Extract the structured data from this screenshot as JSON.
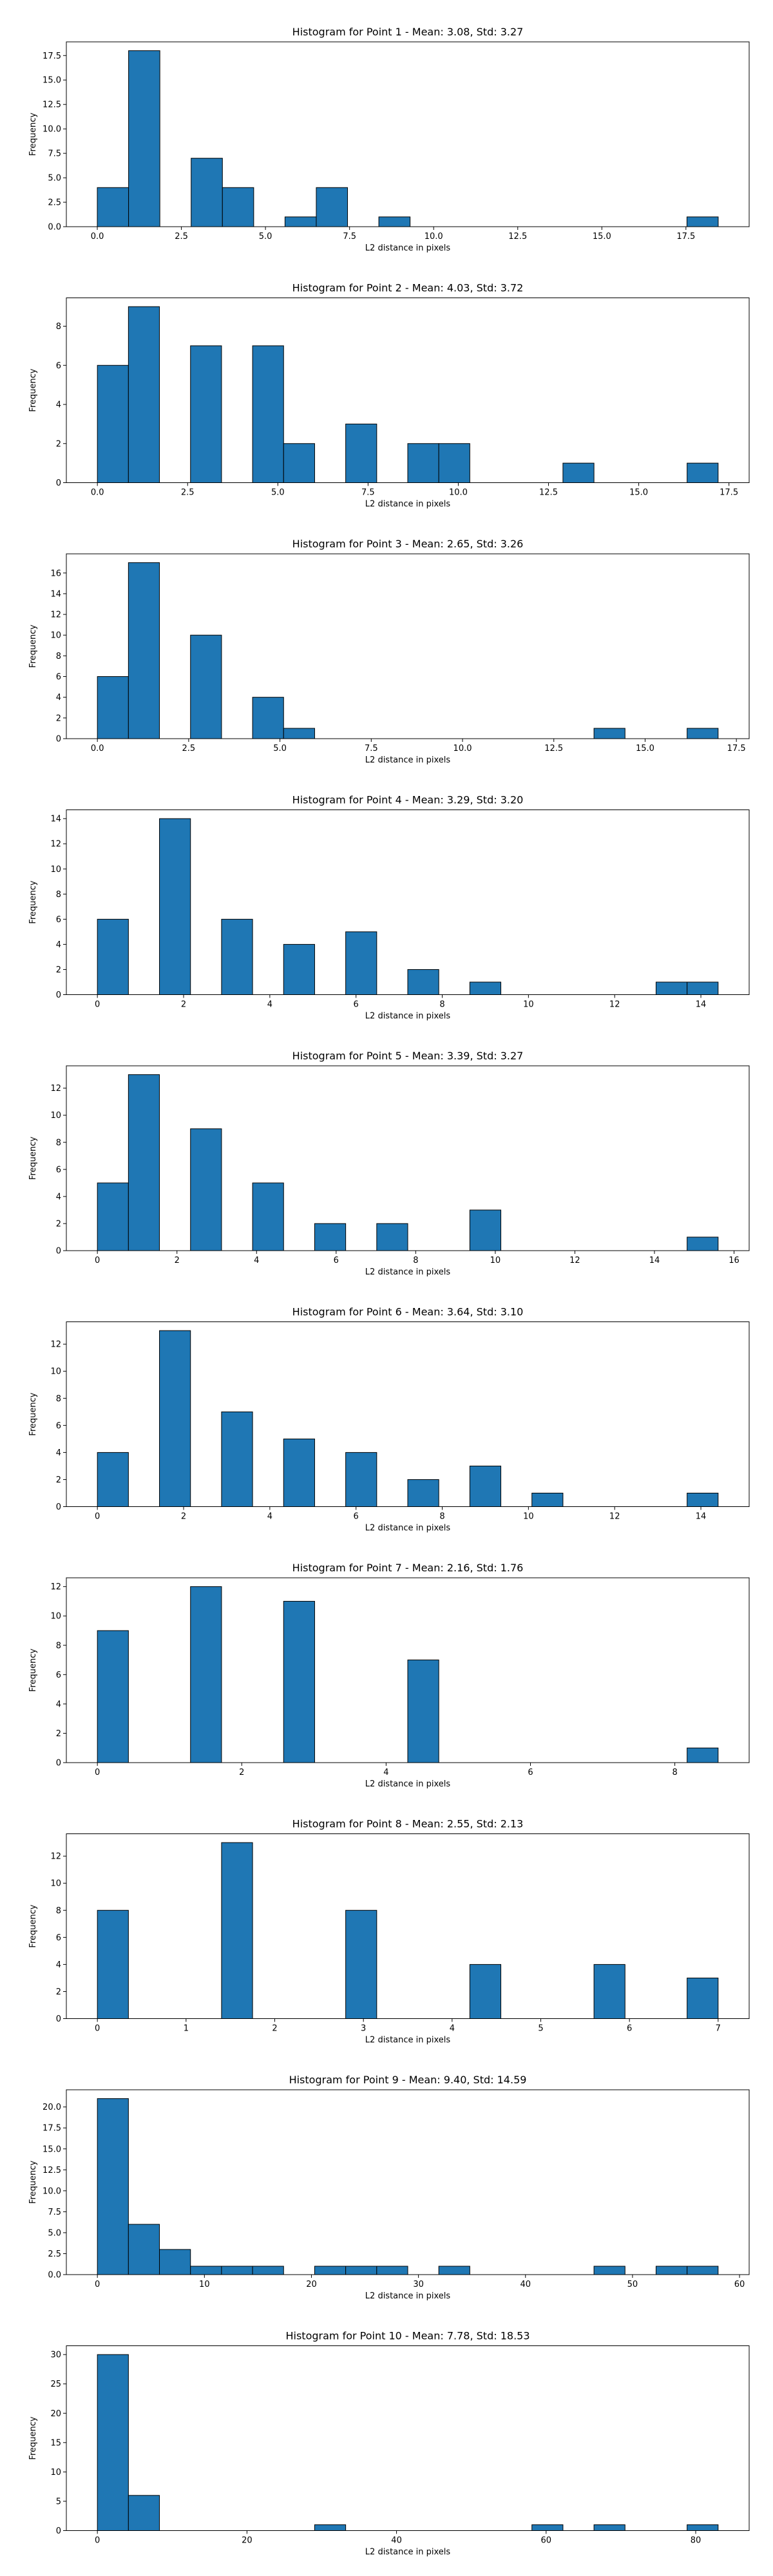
{
  "figure": {
    "background": "#ffffff",
    "bar_color": "#1f77b4",
    "edge_color": "#000000"
  },
  "chart_data": [
    {
      "type": "bar",
      "title": "Histogram for Point 1 - Mean: 3.08, Std: 3.27",
      "xlabel": "L2 distance in pixels",
      "ylabel": "Frequency",
      "xlim": [
        -0.92,
        19.38
      ],
      "ylim": [
        0,
        18.9
      ],
      "xticks": [
        0,
        2.5,
        5,
        7.5,
        10,
        12.5,
        15,
        17.5
      ],
      "xtick_labels": [
        "0.0",
        "2.5",
        "5.0",
        "7.5",
        "10.0",
        "12.5",
        "15.0",
        "17.5"
      ],
      "yticks": [
        0,
        2.5,
        5,
        7.5,
        10,
        12.5,
        15,
        17.5
      ],
      "ytick_labels": [
        "0.0",
        "2.5",
        "5.0",
        "7.5",
        "10.0",
        "12.5",
        "15.0",
        "17.5"
      ],
      "bins": [
        {
          "x0": 0.0,
          "x1": 0.93,
          "count": 4
        },
        {
          "x0": 0.93,
          "x1": 1.86,
          "count": 18
        },
        {
          "x0": 2.79,
          "x1": 3.72,
          "count": 7
        },
        {
          "x0": 3.72,
          "x1": 4.65,
          "count": 4
        },
        {
          "x0": 5.58,
          "x1": 6.51,
          "count": 1
        },
        {
          "x0": 6.51,
          "x1": 7.44,
          "count": 4
        },
        {
          "x0": 8.37,
          "x1": 9.3,
          "count": 1
        },
        {
          "x0": 17.53,
          "x1": 18.46,
          "count": 1
        }
      ]
    },
    {
      "type": "bar",
      "title": "Histogram for Point 2 - Mean: 4.03, Std: 3.72",
      "xlabel": "L2 distance in pixels",
      "ylabel": "Frequency",
      "xlim": [
        -0.86,
        18.06
      ],
      "ylim": [
        0,
        9.45
      ],
      "xticks": [
        0,
        2.5,
        5,
        7.5,
        10,
        12.5,
        15,
        17.5
      ],
      "xtick_labels": [
        "0.0",
        "2.5",
        "5.0",
        "7.5",
        "10.0",
        "12.5",
        "15.0",
        "17.5"
      ],
      "yticks": [
        0,
        2,
        4,
        6,
        8
      ],
      "ytick_labels": [
        "0",
        "2",
        "4",
        "6",
        "8"
      ],
      "bins": [
        {
          "x0": 0.0,
          "x1": 0.86,
          "count": 6
        },
        {
          "x0": 0.86,
          "x1": 1.72,
          "count": 9
        },
        {
          "x0": 2.58,
          "x1": 3.44,
          "count": 7
        },
        {
          "x0": 4.3,
          "x1": 5.16,
          "count": 7
        },
        {
          "x0": 5.16,
          "x1": 6.02,
          "count": 2
        },
        {
          "x0": 6.88,
          "x1": 7.74,
          "count": 3
        },
        {
          "x0": 8.6,
          "x1": 9.46,
          "count": 2
        },
        {
          "x0": 9.46,
          "x1": 10.32,
          "count": 2
        },
        {
          "x0": 12.9,
          "x1": 13.76,
          "count": 1
        },
        {
          "x0": 16.34,
          "x1": 17.2,
          "count": 1
        }
      ]
    },
    {
      "type": "bar",
      "title": "Histogram for Point 3 - Mean: 2.65, Std: 3.26",
      "xlabel": "L2 distance in pixels",
      "ylabel": "Frequency",
      "xlim": [
        -0.85,
        17.85
      ],
      "ylim": [
        0,
        17.85
      ],
      "xticks": [
        0,
        2.5,
        5,
        7.5,
        10,
        12.5,
        15,
        17.5
      ],
      "xtick_labels": [
        "0.0",
        "2.5",
        "5.0",
        "7.5",
        "10.0",
        "12.5",
        "15.0",
        "17.5"
      ],
      "yticks": [
        0,
        2,
        4,
        6,
        8,
        10,
        12,
        14,
        16
      ],
      "ytick_labels": [
        "0",
        "2",
        "4",
        "6",
        "8",
        "10",
        "12",
        "14",
        "16"
      ],
      "bins": [
        {
          "x0": 0.0,
          "x1": 0.85,
          "count": 6
        },
        {
          "x0": 0.85,
          "x1": 1.7,
          "count": 17
        },
        {
          "x0": 2.55,
          "x1": 3.4,
          "count": 10
        },
        {
          "x0": 4.25,
          "x1": 5.1,
          "count": 4
        },
        {
          "x0": 5.1,
          "x1": 5.95,
          "count": 1
        },
        {
          "x0": 13.6,
          "x1": 14.45,
          "count": 1
        },
        {
          "x0": 16.15,
          "x1": 17.0,
          "count": 1
        }
      ]
    },
    {
      "type": "bar",
      "title": "Histogram for Point 4 - Mean: 3.29, Std: 3.20",
      "xlabel": "L2 distance in pixels",
      "ylabel": "Frequency",
      "xlim": [
        -0.72,
        15.12
      ],
      "ylim": [
        0,
        14.7
      ],
      "xticks": [
        0,
        2,
        4,
        6,
        8,
        10,
        12,
        14
      ],
      "xtick_labels": [
        "0",
        "2",
        "4",
        "6",
        "8",
        "10",
        "12",
        "14"
      ],
      "yticks": [
        0,
        2,
        4,
        6,
        8,
        10,
        12,
        14
      ],
      "ytick_labels": [
        "0",
        "2",
        "4",
        "6",
        "8",
        "10",
        "12",
        "14"
      ],
      "bins": [
        {
          "x0": 0.0,
          "x1": 0.72,
          "count": 6
        },
        {
          "x0": 1.44,
          "x1": 2.16,
          "count": 14
        },
        {
          "x0": 2.88,
          "x1": 3.6,
          "count": 6
        },
        {
          "x0": 4.32,
          "x1": 5.04,
          "count": 4
        },
        {
          "x0": 5.76,
          "x1": 6.48,
          "count": 5
        },
        {
          "x0": 7.2,
          "x1": 7.92,
          "count": 2
        },
        {
          "x0": 8.64,
          "x1": 9.36,
          "count": 1
        },
        {
          "x0": 12.96,
          "x1": 13.68,
          "count": 1
        },
        {
          "x0": 13.68,
          "x1": 14.4,
          "count": 1
        }
      ]
    },
    {
      "type": "bar",
      "title": "Histogram for Point 5 - Mean: 3.39, Std: 3.27",
      "xlabel": "L2 distance in pixels",
      "ylabel": "Frequency",
      "xlim": [
        -0.78,
        16.38
      ],
      "ylim": [
        0,
        13.65
      ],
      "xticks": [
        0,
        2,
        4,
        6,
        8,
        10,
        12,
        14,
        16
      ],
      "xtick_labels": [
        "0",
        "2",
        "4",
        "6",
        "8",
        "10",
        "12",
        "14",
        "16"
      ],
      "yticks": [
        0,
        2,
        4,
        6,
        8,
        10,
        12
      ],
      "ytick_labels": [
        "0",
        "2",
        "4",
        "6",
        "8",
        "10",
        "12"
      ],
      "bins": [
        {
          "x0": 0.0,
          "x1": 0.78,
          "count": 5
        },
        {
          "x0": 0.78,
          "x1": 1.56,
          "count": 13
        },
        {
          "x0": 2.34,
          "x1": 3.12,
          "count": 9
        },
        {
          "x0": 3.9,
          "x1": 4.68,
          "count": 5
        },
        {
          "x0": 5.46,
          "x1": 6.24,
          "count": 2
        },
        {
          "x0": 7.02,
          "x1": 7.8,
          "count": 2
        },
        {
          "x0": 9.36,
          "x1": 10.14,
          "count": 3
        },
        {
          "x0": 14.82,
          "x1": 15.6,
          "count": 1
        }
      ]
    },
    {
      "type": "bar",
      "title": "Histogram for Point 6 - Mean: 3.64, Std: 3.10",
      "xlabel": "L2 distance in pixels",
      "ylabel": "Frequency",
      "xlim": [
        -0.72,
        15.12
      ],
      "ylim": [
        0,
        13.65
      ],
      "xticks": [
        0,
        2,
        4,
        6,
        8,
        10,
        12,
        14
      ],
      "xtick_labels": [
        "0",
        "2",
        "4",
        "6",
        "8",
        "10",
        "12",
        "14"
      ],
      "yticks": [
        0,
        2,
        4,
        6,
        8,
        10,
        12
      ],
      "ytick_labels": [
        "0",
        "2",
        "4",
        "6",
        "8",
        "10",
        "12"
      ],
      "bins": [
        {
          "x0": 0.0,
          "x1": 0.72,
          "count": 4
        },
        {
          "x0": 1.44,
          "x1": 2.16,
          "count": 13
        },
        {
          "x0": 2.88,
          "x1": 3.6,
          "count": 7
        },
        {
          "x0": 4.32,
          "x1": 5.04,
          "count": 5
        },
        {
          "x0": 5.76,
          "x1": 6.48,
          "count": 4
        },
        {
          "x0": 7.2,
          "x1": 7.92,
          "count": 2
        },
        {
          "x0": 8.64,
          "x1": 9.36,
          "count": 3
        },
        {
          "x0": 10.08,
          "x1": 10.8,
          "count": 1
        },
        {
          "x0": 13.68,
          "x1": 14.4,
          "count": 1
        }
      ]
    },
    {
      "type": "bar",
      "title": "Histogram for Point 7 - Mean: 2.16, Std: 1.76",
      "xlabel": "L2 distance in pixels",
      "ylabel": "Frequency",
      "xlim": [
        -0.43,
        9.03
      ],
      "ylim": [
        0,
        12.6
      ],
      "xticks": [
        0,
        2,
        4,
        6,
        8
      ],
      "xtick_labels": [
        "0",
        "2",
        "4",
        "6",
        "8"
      ],
      "yticks": [
        0,
        2,
        4,
        6,
        8,
        10,
        12
      ],
      "ytick_labels": [
        "0",
        "2",
        "4",
        "6",
        "8",
        "10",
        "12"
      ],
      "bins": [
        {
          "x0": 0.0,
          "x1": 0.43,
          "count": 9
        },
        {
          "x0": 1.29,
          "x1": 1.72,
          "count": 12
        },
        {
          "x0": 2.58,
          "x1": 3.01,
          "count": 11
        },
        {
          "x0": 4.3,
          "x1": 4.73,
          "count": 7
        },
        {
          "x0": 8.17,
          "x1": 8.6,
          "count": 1
        }
      ]
    },
    {
      "type": "bar",
      "title": "Histogram for Point 8 - Mean: 2.55, Std: 2.13",
      "xlabel": "L2 distance in pixels",
      "ylabel": "Frequency",
      "xlim": [
        -0.35,
        7.35
      ],
      "ylim": [
        0,
        13.65
      ],
      "xticks": [
        0,
        1,
        2,
        3,
        4,
        5,
        6,
        7
      ],
      "xtick_labels": [
        "0",
        "1",
        "2",
        "3",
        "4",
        "5",
        "6",
        "7"
      ],
      "yticks": [
        0,
        2,
        4,
        6,
        8,
        10,
        12
      ],
      "ytick_labels": [
        "0",
        "2",
        "4",
        "6",
        "8",
        "10",
        "12"
      ],
      "bins": [
        {
          "x0": 0.0,
          "x1": 0.35,
          "count": 8
        },
        {
          "x0": 1.4,
          "x1": 1.75,
          "count": 13
        },
        {
          "x0": 2.8,
          "x1": 3.15,
          "count": 8
        },
        {
          "x0": 4.2,
          "x1": 4.55,
          "count": 4
        },
        {
          "x0": 5.6,
          "x1": 5.95,
          "count": 4
        },
        {
          "x0": 6.65,
          "x1": 7.0,
          "count": 3
        }
      ]
    },
    {
      "type": "bar",
      "title": "Histogram for Point 9 - Mean: 9.40, Std: 14.59",
      "xlabel": "L2 distance in pixels",
      "ylabel": "Frequency",
      "xlim": [
        -2.9,
        60.9
      ],
      "ylim": [
        0,
        22.05
      ],
      "xticks": [
        0,
        10,
        20,
        30,
        40,
        50,
        60
      ],
      "xtick_labels": [
        "0",
        "10",
        "20",
        "30",
        "40",
        "50",
        "60"
      ],
      "yticks": [
        0,
        2.5,
        5,
        7.5,
        10,
        12.5,
        15,
        17.5,
        20
      ],
      "ytick_labels": [
        "0.0",
        "2.5",
        "5.0",
        "7.5",
        "10.0",
        "12.5",
        "15.0",
        "17.5",
        "20.0"
      ],
      "bins": [
        {
          "x0": 0.0,
          "x1": 2.9,
          "count": 21
        },
        {
          "x0": 2.9,
          "x1": 5.8,
          "count": 6
        },
        {
          "x0": 5.8,
          "x1": 8.7,
          "count": 3
        },
        {
          "x0": 8.7,
          "x1": 11.6,
          "count": 1
        },
        {
          "x0": 11.6,
          "x1": 14.5,
          "count": 1
        },
        {
          "x0": 14.5,
          "x1": 17.4,
          "count": 1
        },
        {
          "x0": 20.3,
          "x1": 23.2,
          "count": 1
        },
        {
          "x0": 23.2,
          "x1": 26.1,
          "count": 1
        },
        {
          "x0": 26.1,
          "x1": 29.0,
          "count": 1
        },
        {
          "x0": 31.9,
          "x1": 34.8,
          "count": 1
        },
        {
          "x0": 46.4,
          "x1": 49.3,
          "count": 1
        },
        {
          "x0": 52.2,
          "x1": 55.1,
          "count": 1
        },
        {
          "x0": 55.1,
          "x1": 58.0,
          "count": 1
        }
      ]
    },
    {
      "type": "bar",
      "title": "Histogram for Point 10 - Mean: 7.78, Std: 18.53",
      "xlabel": "L2 distance in pixels",
      "ylabel": "Frequency",
      "xlim": [
        -4.15,
        87.15
      ],
      "ylim": [
        0,
        31.5
      ],
      "xticks": [
        0,
        20,
        40,
        60,
        80
      ],
      "xtick_labels": [
        "0",
        "20",
        "40",
        "60",
        "80"
      ],
      "yticks": [
        0,
        5,
        10,
        15,
        20,
        25,
        30
      ],
      "ytick_labels": [
        "0",
        "5",
        "10",
        "15",
        "20",
        "25",
        "30"
      ],
      "bins": [
        {
          "x0": 0.0,
          "x1": 4.15,
          "count": 30
        },
        {
          "x0": 4.15,
          "x1": 8.3,
          "count": 6
        },
        {
          "x0": 29.05,
          "x1": 33.2,
          "count": 1
        },
        {
          "x0": 58.1,
          "x1": 62.25,
          "count": 1
        },
        {
          "x0": 66.4,
          "x1": 70.55,
          "count": 1
        },
        {
          "x0": 78.85,
          "x1": 83.0,
          "count": 1
        }
      ]
    }
  ]
}
